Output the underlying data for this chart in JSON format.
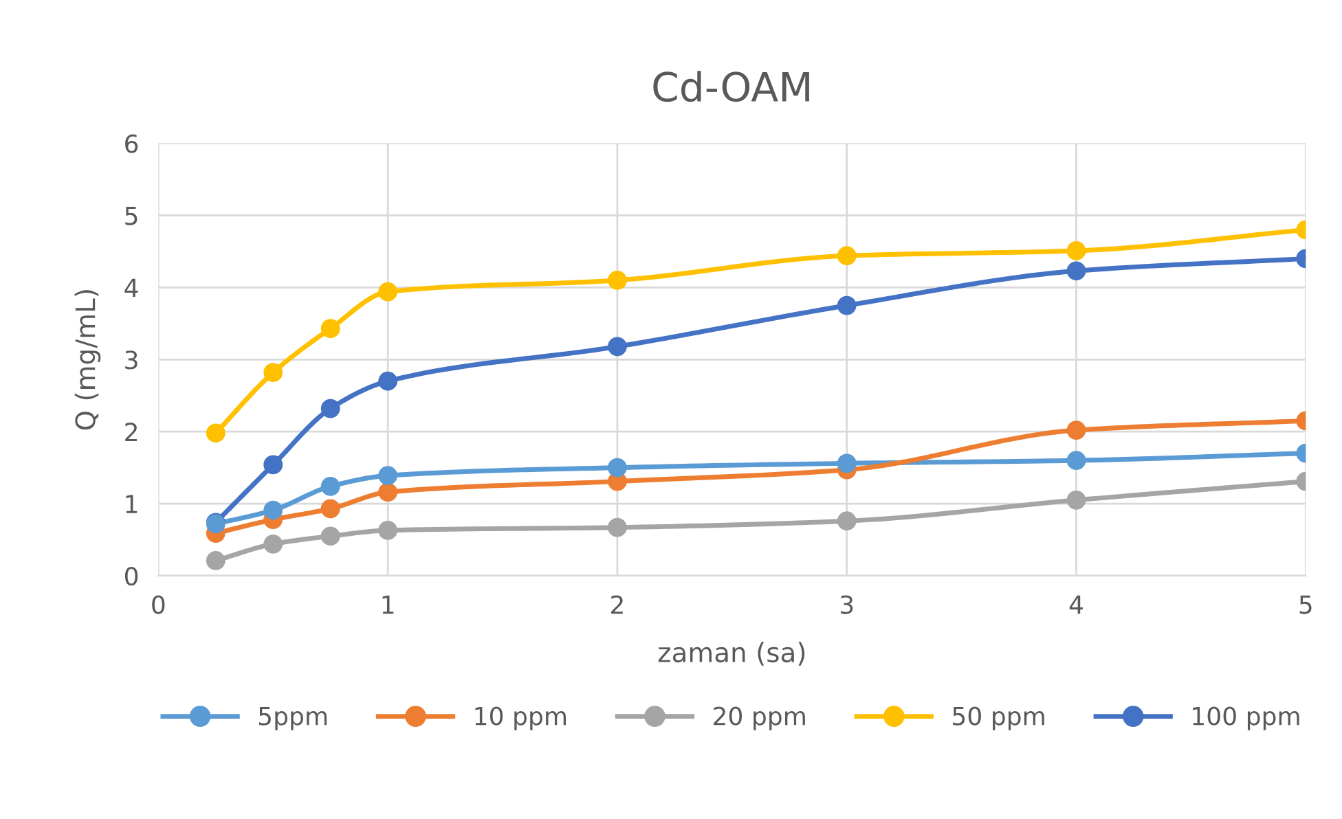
{
  "chart_data": {
    "type": "line",
    "title": "Cd-OAM",
    "xlabel": "zaman (sa)",
    "ylabel": "Q (mg/mL)",
    "x": [
      0.25,
      0.5,
      0.75,
      1,
      2,
      3,
      4,
      5
    ],
    "series": [
      {
        "name": "5ppm",
        "color": "#5b9bd5",
        "values": [
          0.72,
          0.91,
          1.24,
          1.39,
          1.5,
          1.56,
          1.6,
          1.7
        ]
      },
      {
        "name": "10 ppm",
        "color": "#ed7d31",
        "values": [
          0.59,
          0.78,
          0.93,
          1.16,
          1.31,
          1.47,
          2.02,
          2.15
        ]
      },
      {
        "name": "20 ppm",
        "color": "#a5a5a5",
        "values": [
          0.21,
          0.44,
          0.55,
          0.63,
          0.67,
          0.76,
          1.05,
          1.31
        ]
      },
      {
        "name": "50 ppm",
        "color": "#ffc000",
        "values": [
          1.98,
          2.82,
          3.43,
          3.94,
          4.1,
          4.44,
          4.51,
          4.8
        ]
      },
      {
        "name": "100 ppm",
        "color": "#4472c4",
        "values": [
          0.74,
          1.54,
          2.32,
          2.7,
          3.18,
          3.75,
          4.23,
          4.4
        ]
      }
    ],
    "xlim": [
      0,
      5
    ],
    "xticks": [
      0,
      1,
      2,
      3,
      4,
      5
    ],
    "ylim": [
      0,
      6
    ],
    "yticks": [
      0,
      1,
      2,
      3,
      4,
      5,
      6
    ],
    "grid": true,
    "legend": "bottom",
    "marker": "circle",
    "line_style": "solid"
  }
}
